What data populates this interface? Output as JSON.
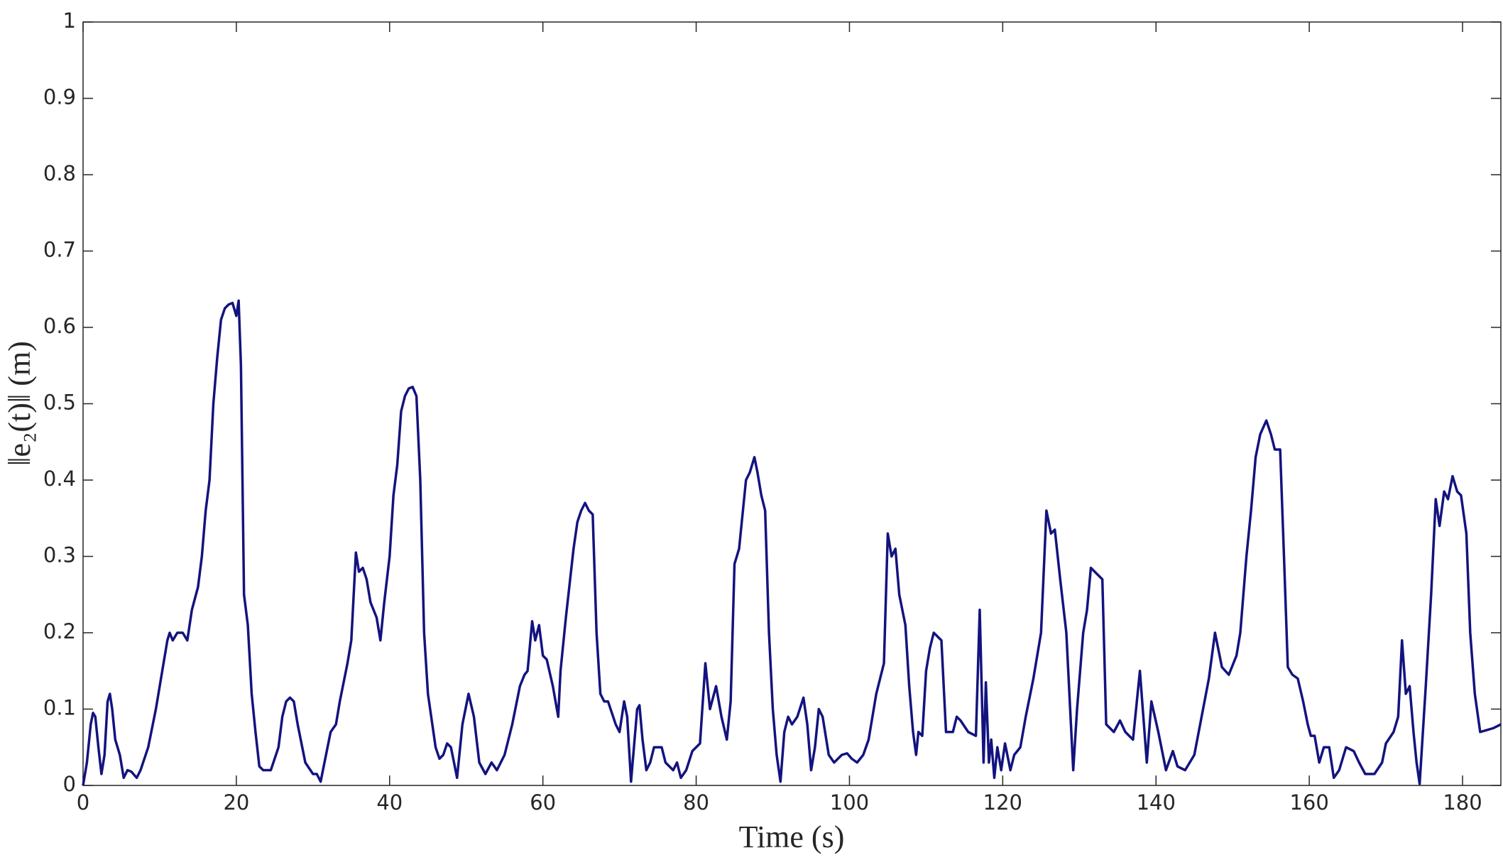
{
  "chart_data": {
    "type": "line",
    "xlabel": "Time (s)",
    "ylabel": "‖e₂(t)‖ (m)",
    "color": "#13137f",
    "x": [
      0,
      0.5,
      1,
      1.3,
      1.6,
      2,
      2.4,
      2.8,
      3.2,
      3.5,
      3.8,
      4.2,
      4.8,
      5.3,
      5.8,
      6.3,
      7,
      7.5,
      8.5,
      9.5,
      10.5,
      11,
      11.3,
      11.7,
      12.3,
      13,
      13.6,
      14.2,
      15,
      15.5,
      16,
      16.5,
      17,
      17.5,
      18,
      18.5,
      19,
      19.5,
      20,
      20.3,
      20.6,
      21,
      21.5,
      22,
      22.5,
      23,
      23.5,
      24,
      24.5,
      25.5,
      26,
      26.5,
      27,
      27.5,
      28,
      29,
      30,
      30.5,
      31,
      31.5,
      32.3,
      33,
      33.5,
      34.5,
      35,
      35.6,
      36,
      36.5,
      37,
      37.5,
      38.3,
      38.8,
      39.3,
      40,
      40.5,
      41,
      41.5,
      42,
      42.5,
      43,
      43.5,
      44,
      44.5,
      45,
      46,
      46.5,
      47,
      47.5,
      48,
      48.8,
      49.5,
      50.3,
      51,
      51.7,
      52.5,
      53.3,
      54,
      55,
      56,
      57,
      57.6,
      58,
      58.6,
      59,
      59.5,
      60,
      60.5,
      61.3,
      62,
      62.3,
      63,
      64,
      64.5,
      65,
      65.5,
      66,
      66.5,
      67,
      67.5,
      68,
      68.5,
      69.5,
      70,
      70.6,
      71,
      71.5,
      72.3,
      72.6,
      73,
      73.5,
      74,
      74.5,
      75.5,
      76,
      77,
      77.5,
      78,
      78.7,
      79.5,
      80.5,
      81.2,
      81.8,
      82.6,
      83.3,
      84,
      84.5,
      85,
      85.6,
      86,
      86.5,
      87,
      87.6,
      88,
      88.5,
      89,
      89.5,
      90,
      90.5,
      91,
      91.5,
      92,
      92.5,
      93.2,
      94,
      94.5,
      95,
      95.5,
      96,
      96.5,
      97.3,
      98,
      99,
      99.7,
      100.3,
      101,
      101.8,
      102.5,
      103.5,
      104.5,
      105,
      105.5,
      106,
      106.5,
      107.3,
      107.8,
      108.3,
      108.7,
      109,
      109.5,
      110,
      110.5,
      111,
      111.5,
      112,
      112.6,
      113.5,
      114,
      114.5,
      115.5,
      116.5,
      117,
      117.5,
      117.8,
      118.2,
      118.5,
      118.9,
      119.3,
      119.8,
      120.3,
      121,
      121.5,
      122.3,
      123,
      124,
      125,
      125.7,
      126.3,
      126.8,
      127.5,
      128.3,
      128.8,
      129.2,
      129.7,
      130.5,
      131,
      131.5,
      132,
      132.5,
      133,
      133.5,
      134.5,
      135.3,
      136,
      137,
      137.9,
      138.8,
      139.4,
      140.3,
      141.3,
      142.2,
      142.8,
      143.8,
      145,
      146.9,
      147.7,
      148.6,
      149.5,
      150.5,
      151,
      151.8,
      152.4,
      153,
      153.6,
      154.4,
      155,
      155.5,
      156.2,
      156.7,
      157.2,
      157.8,
      158.5,
      159.2,
      159.8,
      160.2,
      160.7,
      161.3,
      161.9,
      162.6,
      163.2,
      163.9,
      164.8,
      165.8,
      166.5,
      167.3,
      168.5,
      169.5,
      170,
      171,
      171.6,
      172.1,
      172.6,
      173.1,
      173.6,
      174,
      174.4,
      175.2,
      175.9,
      176.5,
      177,
      177.6,
      178.1,
      178.7,
      179.3,
      179.8,
      180.5,
      181,
      181.6,
      182.3,
      183,
      184,
      185
    ],
    "values": [
      0,
      0.03,
      0.08,
      0.095,
      0.09,
      0.05,
      0.015,
      0.04,
      0.11,
      0.12,
      0.1,
      0.06,
      0.04,
      0.01,
      0.02,
      0.018,
      0.01,
      0.02,
      0.05,
      0.1,
      0.16,
      0.19,
      0.2,
      0.19,
      0.2,
      0.2,
      0.19,
      0.23,
      0.26,
      0.3,
      0.36,
      0.4,
      0.5,
      0.56,
      0.61,
      0.625,
      0.63,
      0.632,
      0.615,
      0.635,
      0.55,
      0.25,
      0.21,
      0.12,
      0.07,
      0.025,
      0.02,
      0.02,
      0.02,
      0.05,
      0.09,
      0.11,
      0.115,
      0.11,
      0.08,
      0.03,
      0.015,
      0.015,
      0.005,
      0.03,
      0.07,
      0.08,
      0.11,
      0.16,
      0.19,
      0.305,
      0.28,
      0.285,
      0.27,
      0.24,
      0.22,
      0.19,
      0.24,
      0.3,
      0.38,
      0.42,
      0.49,
      0.51,
      0.52,
      0.522,
      0.51,
      0.4,
      0.2,
      0.12,
      0.05,
      0.035,
      0.04,
      0.055,
      0.05,
      0.01,
      0.08,
      0.12,
      0.09,
      0.03,
      0.015,
      0.03,
      0.02,
      0.04,
      0.08,
      0.13,
      0.145,
      0.15,
      0.215,
      0.19,
      0.21,
      0.17,
      0.165,
      0.13,
      0.09,
      0.15,
      0.22,
      0.31,
      0.345,
      0.36,
      0.37,
      0.36,
      0.355,
      0.2,
      0.12,
      0.11,
      0.11,
      0.08,
      0.07,
      0.11,
      0.09,
      0.005,
      0.1,
      0.105,
      0.06,
      0.02,
      0.03,
      0.05,
      0.05,
      0.03,
      0.02,
      0.03,
      0.01,
      0.02,
      0.045,
      0.055,
      0.16,
      0.1,
      0.13,
      0.09,
      0.06,
      0.11,
      0.29,
      0.31,
      0.35,
      0.4,
      0.41,
      0.43,
      0.41,
      0.38,
      0.36,
      0.2,
      0.1,
      0.04,
      0.005,
      0.07,
      0.09,
      0.08,
      0.09,
      0.115,
      0.08,
      0.02,
      0.05,
      0.1,
      0.09,
      0.04,
      0.03,
      0.04,
      0.042,
      0.035,
      0.03,
      0.04,
      0.06,
      0.12,
      0.16,
      0.33,
      0.3,
      0.31,
      0.25,
      0.21,
      0.13,
      0.07,
      0.04,
      0.07,
      0.065,
      0.15,
      0.18,
      0.2,
      0.195,
      0.19,
      0.07,
      0.07,
      0.09,
      0.085,
      0.07,
      0.065,
      0.23,
      0.03,
      0.135,
      0.03,
      0.06,
      0.01,
      0.05,
      0.02,
      0.055,
      0.02,
      0.04,
      0.05,
      0.09,
      0.14,
      0.2,
      0.36,
      0.33,
      0.335,
      0.27,
      0.2,
      0.1,
      0.02,
      0.1,
      0.2,
      0.23,
      0.285,
      0.28,
      0.275,
      0.27,
      0.08,
      0.07,
      0.085,
      0.07,
      0.06,
      0.15,
      0.03,
      0.11,
      0.07,
      0.02,
      0.045,
      0.025,
      0.02,
      0.04,
      0.14,
      0.2,
      0.155,
      0.145,
      0.17,
      0.2,
      0.3,
      0.36,
      0.43,
      0.46,
      0.478,
      0.46,
      0.44,
      0.44,
      0.3,
      0.155,
      0.145,
      0.14,
      0.11,
      0.08,
      0.065,
      0.065,
      0.03,
      0.05,
      0.05,
      0.01,
      0.02,
      0.05,
      0.045,
      0.03,
      0.015,
      0.015,
      0.03,
      0.055,
      0.07,
      0.09,
      0.19,
      0.12,
      0.13,
      0.07,
      0.03,
      0.002,
      0.13,
      0.25,
      0.375,
      0.34,
      0.385,
      0.375,
      0.405,
      0.385,
      0.38,
      0.33,
      0.2,
      0.12,
      0.07,
      0.072,
      0.075,
      0.08
    ],
    "xlim": [
      0,
      185
    ],
    "ylim": [
      0,
      1
    ],
    "xticks": [
      0,
      20,
      40,
      60,
      80,
      100,
      120,
      140,
      160,
      180
    ],
    "yticks": [
      0,
      0.1,
      0.2,
      0.3,
      0.4,
      0.5,
      0.6,
      0.7,
      0.8,
      0.9,
      1
    ],
    "grid": false
  }
}
